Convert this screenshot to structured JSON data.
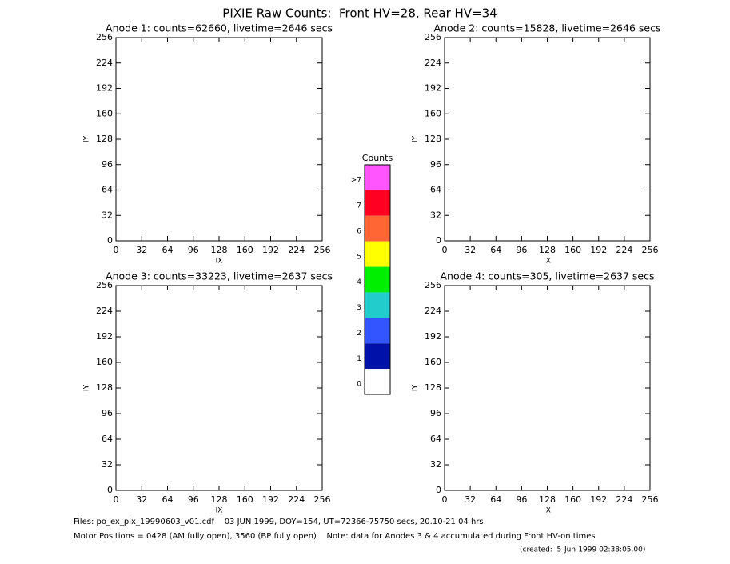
{
  "title": "PIXIE Raw Counts:  Front HV=28, Rear HV=34",
  "chart_data": [
    {
      "type": "heatmap",
      "title": "Anode 1: counts=62660, livetime=2646 secs",
      "xlabel": "IX",
      "ylabel": "IY",
      "xlim": [
        0,
        256
      ],
      "ylim": [
        0,
        256
      ],
      "xticks": [
        0,
        32,
        64,
        96,
        128,
        160,
        192,
        224,
        256
      ],
      "yticks": [
        0,
        32,
        64,
        96,
        128,
        160,
        192,
        224,
        256
      ]
    },
    {
      "type": "heatmap",
      "title": "Anode 2: counts=15828, livetime=2646 secs",
      "xlabel": "IX",
      "ylabel": "IY",
      "xlim": [
        0,
        256
      ],
      "ylim": [
        0,
        256
      ],
      "xticks": [
        0,
        32,
        64,
        96,
        128,
        160,
        192,
        224,
        256
      ],
      "yticks": [
        0,
        32,
        64,
        96,
        128,
        160,
        192,
        224,
        256
      ]
    },
    {
      "type": "heatmap",
      "title": "Anode 3: counts=33223, livetime=2637 secs",
      "xlabel": "IX",
      "ylabel": "IY",
      "xlim": [
        0,
        256
      ],
      "ylim": [
        0,
        256
      ],
      "xticks": [
        0,
        32,
        64,
        96,
        128,
        160,
        192,
        224,
        256
      ],
      "yticks": [
        0,
        32,
        64,
        96,
        128,
        160,
        192,
        224,
        256
      ]
    },
    {
      "type": "heatmap",
      "title": "Anode 4: counts=305, livetime=2637 secs",
      "xlabel": "IX",
      "ylabel": "IY",
      "xlim": [
        0,
        256
      ],
      "ylim": [
        0,
        256
      ],
      "xticks": [
        0,
        32,
        64,
        96,
        128,
        160,
        192,
        224,
        256
      ],
      "yticks": [
        0,
        32,
        64,
        96,
        128,
        160,
        192,
        224,
        256
      ]
    }
  ],
  "colorbar": {
    "title": "Counts",
    "levels": [
      {
        "label": ">7",
        "color": "#ff55ff"
      },
      {
        "label": "7",
        "color": "#ff0022"
      },
      {
        "label": "6",
        "color": "#ff6633"
      },
      {
        "label": "5",
        "color": "#ffff00"
      },
      {
        "label": "4",
        "color": "#00ee00"
      },
      {
        "label": "3",
        "color": "#22cccc"
      },
      {
        "label": "2",
        "color": "#3355ff"
      },
      {
        "label": "1",
        "color": "#0011aa"
      },
      {
        "label": "0",
        "color": "#ffffff"
      }
    ]
  },
  "footer": {
    "files": "Files: po_ex_pix_19990603_v01.cdf    03 JUN 1999, DOY=154, UT=72366-75750 secs, 20.10-21.04 hrs",
    "motor": "Motor Positions = 0428 (AM fully open), 3560 (BP fully open)    Note: data for Anodes 3 & 4 accumulated during Front HV-on times",
    "created": "(created:  5-Jun-1999 02:38:05.00)"
  }
}
